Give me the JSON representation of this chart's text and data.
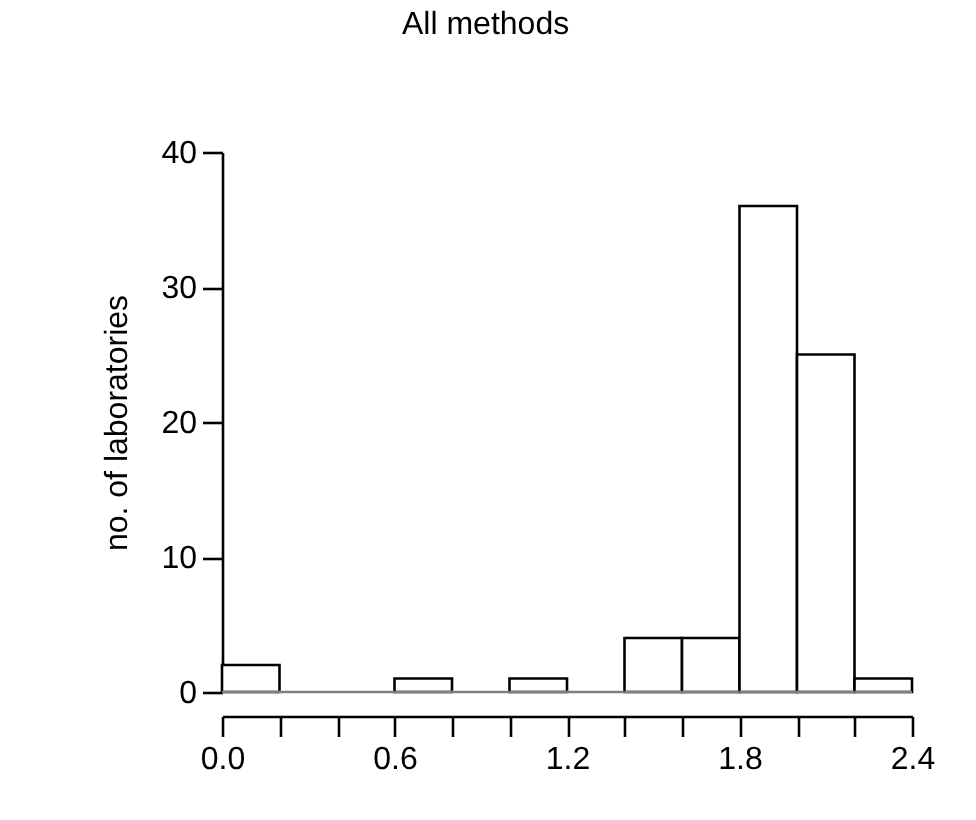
{
  "chart_data": {
    "type": "histogram",
    "ylabel": "no. of laboratories",
    "bins": [
      0,
      0.2,
      0.4,
      0.6,
      0.8,
      1.0,
      1.2,
      1.4,
      1.6,
      1.8,
      2.0,
      2.2,
      2.4
    ],
    "series": [
      {
        "name": "All methods",
        "color": "#ffffff",
        "values": [
          2,
          0,
          0,
          1,
          0,
          1,
          0,
          4,
          4,
          36,
          25,
          1
        ]
      },
      {
        "color": "#808080",
        "values": [
          0,
          0,
          0,
          0,
          0,
          0,
          0,
          0,
          0,
          0,
          0,
          0
        ]
      }
    ],
    "xlim": [
      0,
      2.4
    ],
    "ylim": [
      0,
      40
    ],
    "xticks": [
      {
        "value": 0,
        "label": "0.0"
      },
      {
        "value": 0.2,
        "label": null
      },
      {
        "value": 0.4,
        "label": null
      },
      {
        "value": 0.6,
        "label": "0.6"
      },
      {
        "value": 0.8,
        "label": null
      },
      {
        "value": 1.0,
        "label": null
      },
      {
        "value": 1.2,
        "label": "1.2"
      },
      {
        "value": 1.4,
        "label": null
      },
      {
        "value": 1.6,
        "label": null
      },
      {
        "value": 1.8,
        "label": "1.8"
      },
      {
        "value": 2.0,
        "label": null
      },
      {
        "value": 2.2,
        "label": null
      },
      {
        "value": 2.4,
        "label": "2.4"
      }
    ],
    "yticks": [
      0,
      10,
      20,
      30,
      40
    ],
    "legend": "top left",
    "grid": false
  }
}
